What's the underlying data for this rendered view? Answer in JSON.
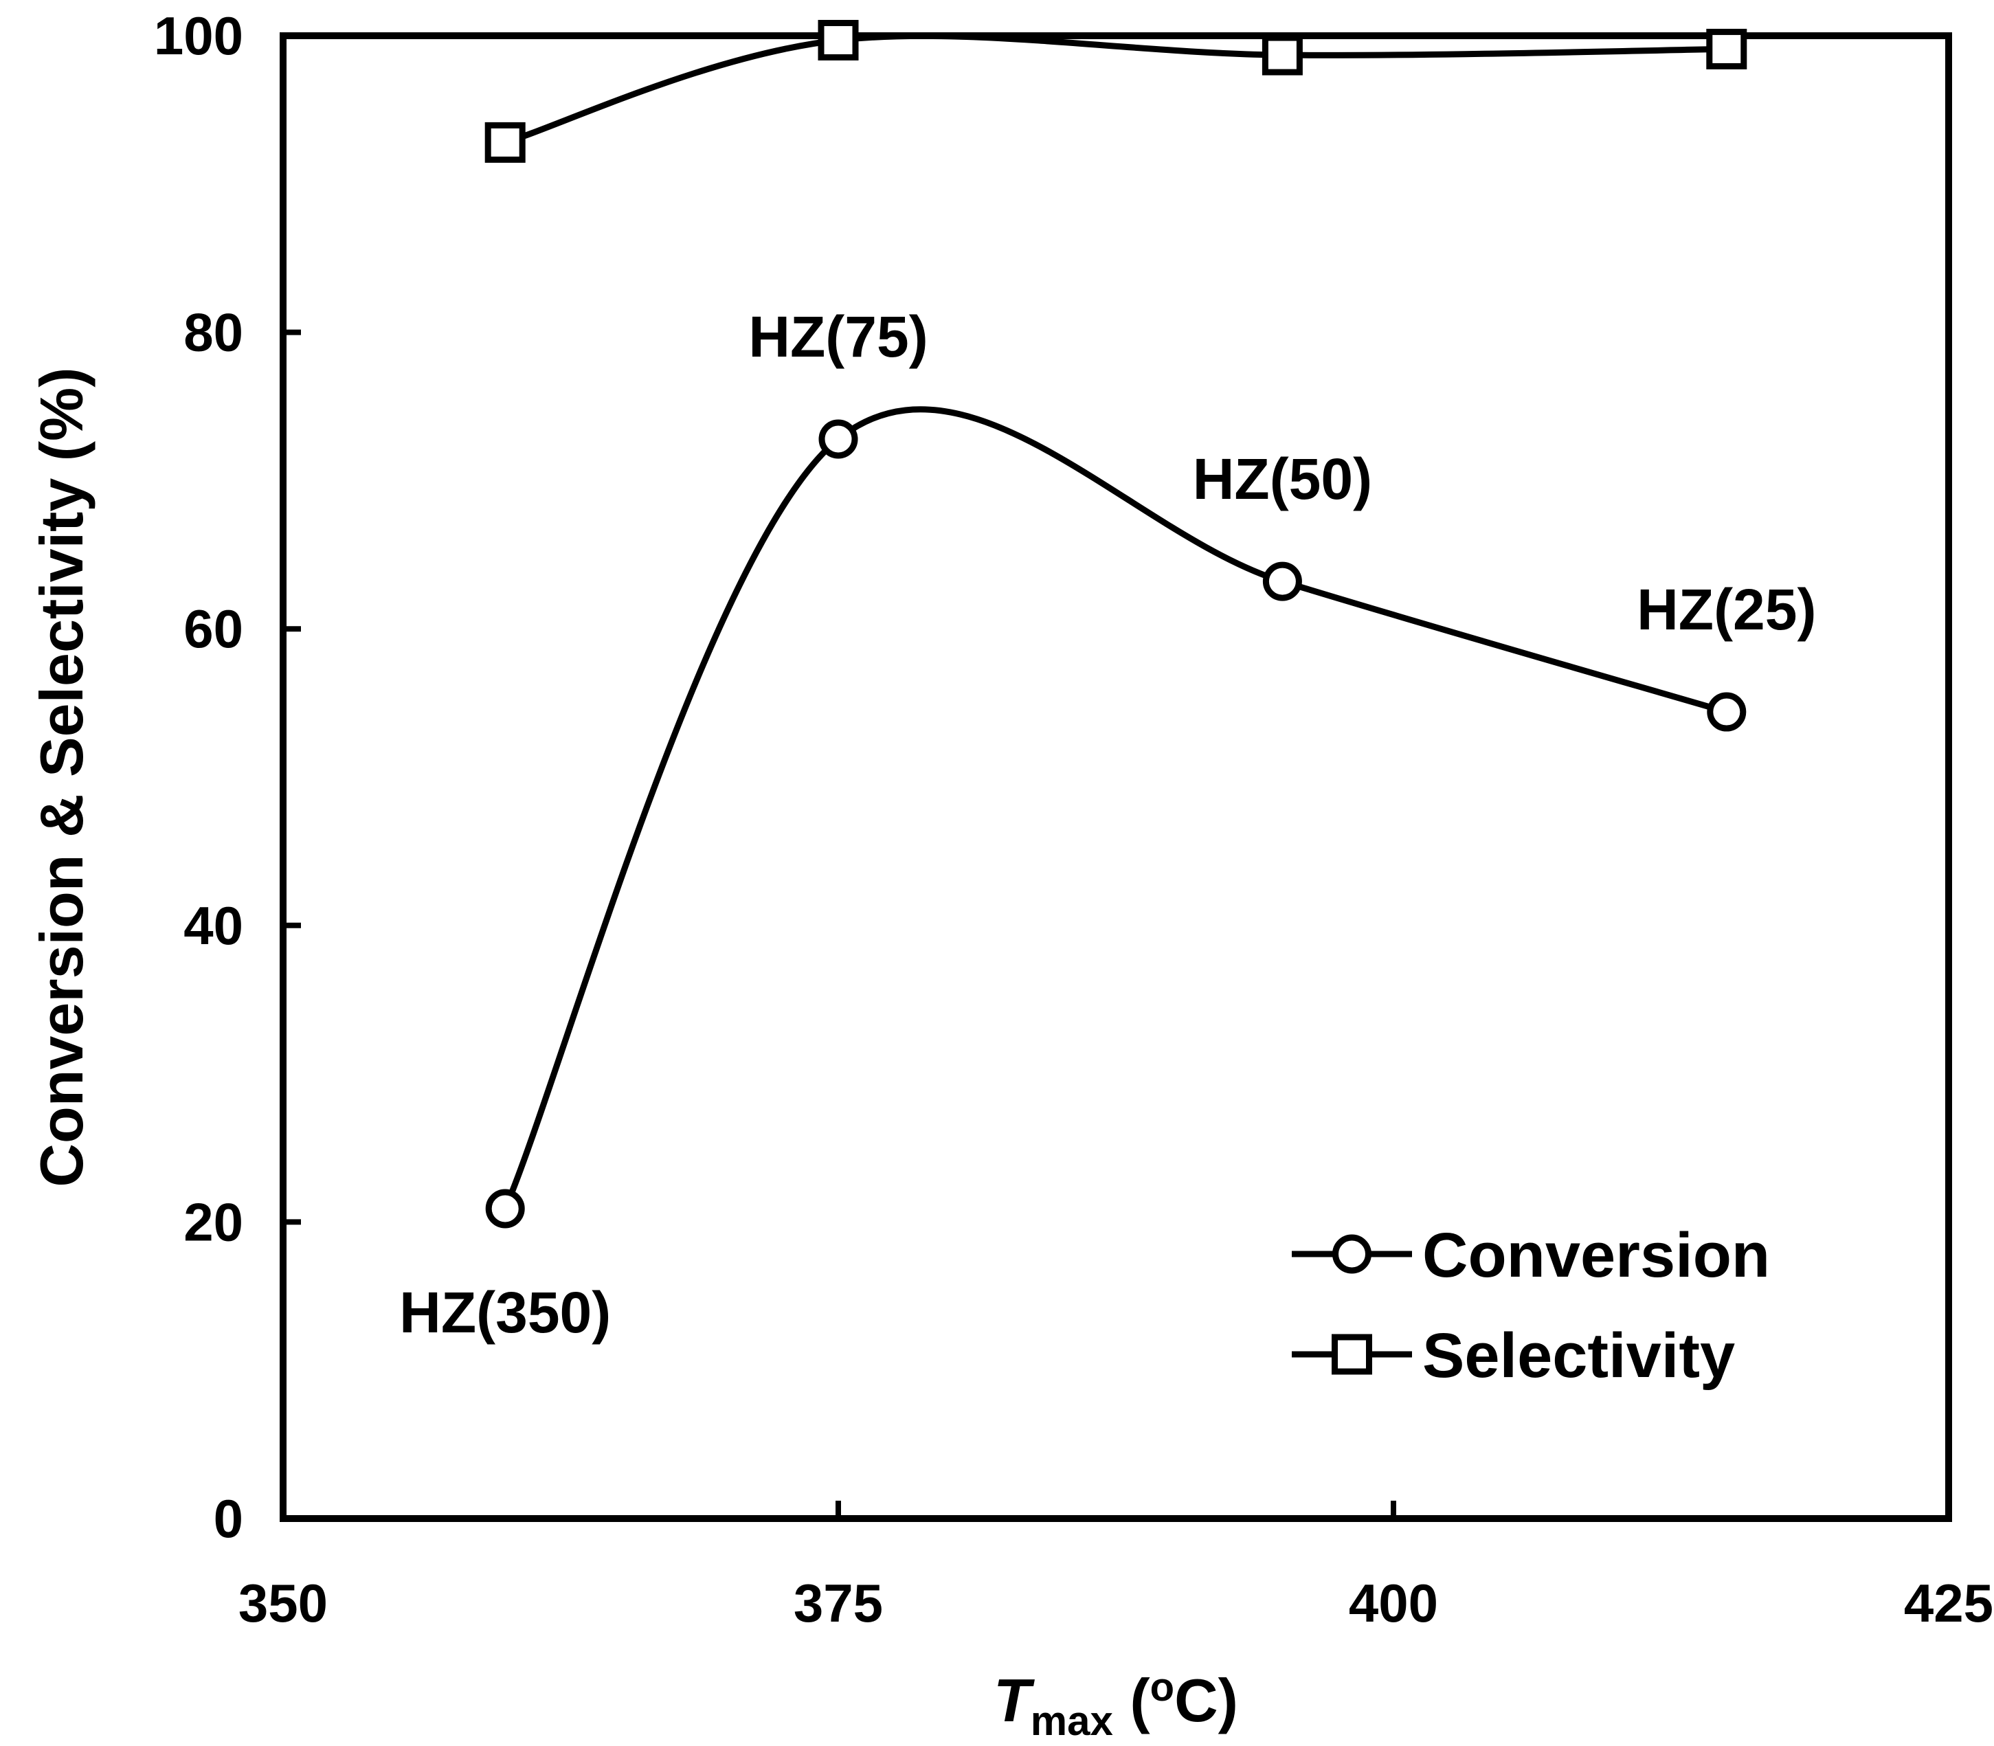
{
  "chart_data": {
    "type": "line",
    "title": "",
    "xlabel": {
      "main": "T",
      "sub": "max",
      "unit_open": " (",
      "unit_sup": "o",
      "unit_rest": "C)"
    },
    "ylabel": "Conversion & Selectivity (%)",
    "xlim": [
      350,
      425
    ],
    "ylim": [
      0,
      100
    ],
    "xticks": [
      350,
      375,
      400,
      425
    ],
    "yticks": [
      0,
      20,
      40,
      60,
      80,
      100
    ],
    "grid": false,
    "legend_position": "bottom-right",
    "series": [
      {
        "name": "Conversion",
        "marker": "circle",
        "smooth": true,
        "x": [
          360,
          375,
          395,
          415
        ],
        "y": [
          20.9,
          72.8,
          63.2,
          54.4
        ]
      },
      {
        "name": "Selectivity",
        "marker": "square",
        "smooth": true,
        "x": [
          360,
          375,
          395,
          415
        ],
        "y": [
          92.8,
          99.7,
          98.7,
          99.1
        ]
      }
    ],
    "annotations": [
      {
        "text": "HZ(350)",
        "x": 360,
        "y": 20.9,
        "placement": "below"
      },
      {
        "text": "HZ(75)",
        "x": 375,
        "y": 72.8,
        "placement": "above"
      },
      {
        "text": "HZ(50)",
        "x": 395,
        "y": 63.2,
        "placement": "above"
      },
      {
        "text": "HZ(25)",
        "x": 415,
        "y": 54.4,
        "placement": "above"
      }
    ],
    "colors": {
      "line": "#000000",
      "background": "#ffffff"
    }
  }
}
